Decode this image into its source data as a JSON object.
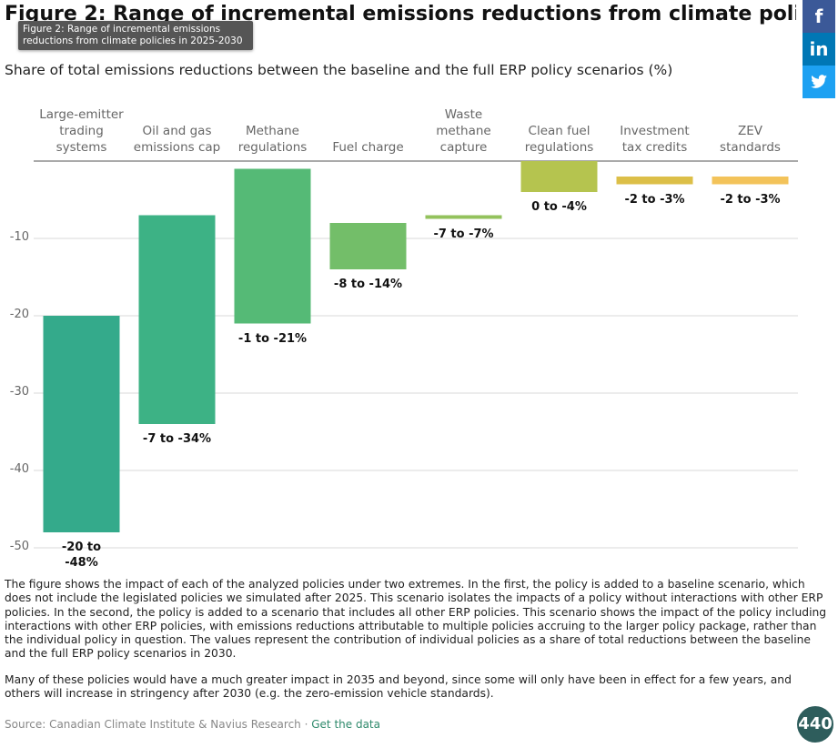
{
  "title": "Figure 2: Range of incremental emissions reductions from climate policies in 2025-2030",
  "tooltip": "Figure 2: Range of incremental emissions reductions from climate policies in 2025-2030",
  "chart_data": {
    "type": "range-bar",
    "subtitle": "Share of total emissions reductions between the baseline and the full ERP policy scenarios (%)",
    "categories": [
      "Large-emitter trading systems",
      "Oil and gas emissions cap",
      "Methane regulations",
      "Fuel charge",
      "Waste methane capture",
      "Clean fuel regulations",
      "Investment tax credits",
      "ZEV standards"
    ],
    "values": [
      [
        -20,
        -48
      ],
      [
        -7,
        -34
      ],
      [
        -1,
        -21
      ],
      [
        -8,
        -14
      ],
      [
        -7,
        -7
      ],
      [
        0,
        -4
      ],
      [
        -2,
        -3
      ],
      [
        -2,
        -3
      ]
    ],
    "value_labels": [
      "-20 to -48%",
      "-7 to -34%",
      "-1 to -21%",
      "-8 to -14%",
      "-7 to -7%",
      "0 to -4%",
      "-2 to -3%",
      "-2 to -3%"
    ],
    "colors": [
      "#34aa8b",
      "#3db285",
      "#55ba76",
      "#73be69",
      "#93c25c",
      "#b5c44f",
      "#dcbf48",
      "#f3c35a"
    ],
    "ylim": [
      -50,
      0
    ],
    "yticks": [
      -50,
      -40,
      -30,
      -20,
      -10
    ],
    "grid": true
  },
  "notes": [
    "The figure shows the impact of each of the analyzed policies under two extremes. In the first, the policy is added to a baseline scenario, which does not include the legislated policies we simulated after 2025. This scenario isolates the impacts of a policy without interactions with other ERP policies. In the second, the policy is added to a scenario that includes all other ERP policies. This scenario shows the impact of the policy including interactions with other ERP policies, with emissions reductions attributable to multiple policies accruing to the larger policy package, rather than the individual policy in question. The values represent the contribution of individual policies as a share of total reductions between the baseline and the full ERP policy scenarios in 2030.",
    "Many of these policies would have a much greater impact in 2035 and beyond, since some will only have been in effect for a few years, and others will increase in stringency after 2030 (e.g. the zero-emission vehicle standards)."
  ],
  "source": "Source: Canadian Climate Institute & Navius Research ·",
  "link": "Get the data",
  "social": [
    "f",
    "in"
  ],
  "logo": "440"
}
